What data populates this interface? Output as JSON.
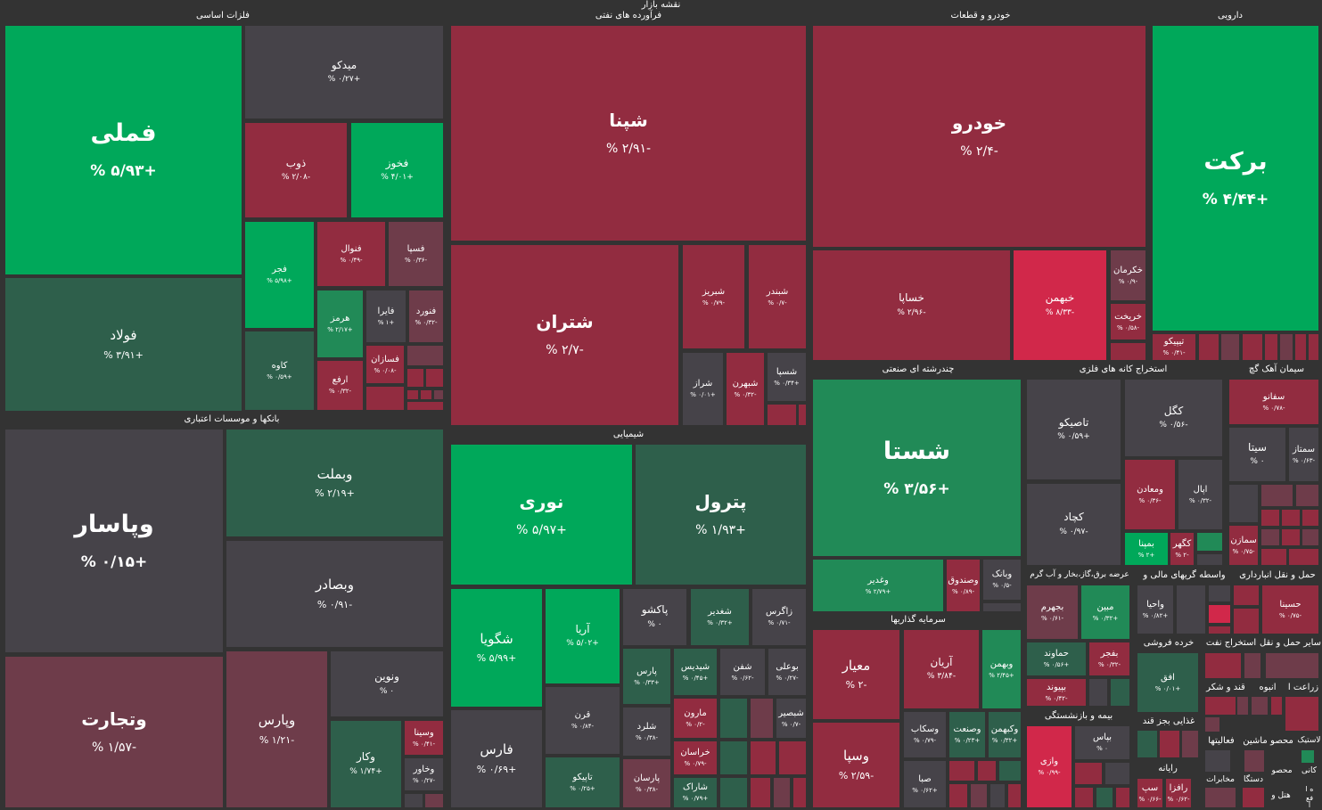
{
  "title": "نقشه بازار",
  "colors": {
    "strong_green": "#00a85a",
    "green": "#218a57",
    "dark_green": "#2e5f4b",
    "red": "#922c40",
    "bright_red": "#d1284a",
    "muted_red": "#6e3c4a",
    "neutral": "#464349",
    "background": "#333333"
  },
  "sectors": {
    "base_metals": "فلزات اساسی",
    "petroleum": "فرآورده های نفتی",
    "auto": "خودرو و قطعات",
    "pharma": "دارویی",
    "banks": "بانکها و موسسات اعتباری",
    "chemical": "شیمیایی",
    "multi": "چندرشته ای صنعتی",
    "mining": "استخراج کانه های فلزی",
    "cement": "سیمان آهک گچ",
    "utilities": "عرضه برق،گاز،بخار و آب گرم",
    "financial_intermediation": "واسطه گریهای مالی و",
    "transport": "حمل و نقل انبارداری",
    "investments": "سرمایه گذاریها",
    "retail": "خرده فروشی",
    "oil_extraction": "استخراج نفت",
    "other_transport": "سایر حمل و نقل",
    "insurance": "بیمه و بازنشستگی",
    "food": "غذایی بجز قند",
    "sugar": "قند و شکر",
    "masonry": "انبوه",
    "agriculture": "زراعت ا",
    "computer": "رایانه",
    "machinery": "ماشین",
    "activities": "فعالیتها",
    "plastic": "لاستیک",
    "products": "محصو",
    "telecom": "مخابرات",
    "devices": "دستگا",
    "hotel": "هتل و",
    "mineral": "کانی",
    "product2": "محصو",
    "misc_a": "ه ا",
    "misc_b": "فع",
    "misc_c": "ا"
  },
  "tiles": [
    {
      "name": "فملی",
      "pct": "+۵/۹۳ %"
    },
    {
      "name": "میدکو",
      "pct": "+۰/۲۷ %"
    },
    {
      "name": "ذوب",
      "pct": "-۲/۰۸ %"
    },
    {
      "name": "فخوز",
      "pct": "+۴/۰۱ %"
    },
    {
      "name": "فجر",
      "pct": "+۵/۹۸ %"
    },
    {
      "name": "فنوال",
      "pct": "-۰/۴۹ %"
    },
    {
      "name": "فسپا",
      "pct": "-۰/۳۶ %"
    },
    {
      "name": "هرمز",
      "pct": "+۲/۱۷ %"
    },
    {
      "name": "فایرا",
      "pct": "+۱ %"
    },
    {
      "name": "فنورد",
      "pct": "-۰/۳۲ %"
    },
    {
      "name": "فولاد",
      "pct": "+۳/۹۱ %"
    },
    {
      "name": "کاوه",
      "pct": "+۰/۵۹ %"
    },
    {
      "name": "ارفع",
      "pct": "-۰/۳۲ %"
    },
    {
      "name": "فسازان",
      "pct": "-۰/۰۸ %"
    },
    {
      "name": "شپنا",
      "pct": "-۲/۹۱ %"
    },
    {
      "name": "شتران",
      "pct": "-۲/۷ %"
    },
    {
      "name": "شبریز",
      "pct": "-۰/۷۹ %"
    },
    {
      "name": "شبندر",
      "pct": "-۰/۷ %"
    },
    {
      "name": "شراز",
      "pct": "+۰/۰۱ %"
    },
    {
      "name": "شبهرن",
      "pct": "-۰/۳۲ %"
    },
    {
      "name": "شسپا",
      "pct": "+۰/۳۴ %"
    },
    {
      "name": "خودرو",
      "pct": "-۲/۴ %"
    },
    {
      "name": "خساپا",
      "pct": "-۲/۹۶ %"
    },
    {
      "name": "خبهمن",
      "pct": "-۸/۳۳ %"
    },
    {
      "name": "خکرمان",
      "pct": "-۰/۹ %"
    },
    {
      "name": "خریخت",
      "pct": "-۰/۵۸ %"
    },
    {
      "name": "برکت",
      "pct": "+۴/۴۴ %"
    },
    {
      "name": "تیپیکو",
      "pct": "-۰/۴۱ %"
    },
    {
      "name": "وپاسار",
      "pct": "+۰/۱۵ %"
    },
    {
      "name": "وبملت",
      "pct": "+۲/۱۹ %"
    },
    {
      "name": "وبصادر",
      "pct": "-۰/۹۱ %"
    },
    {
      "name": "ونوین",
      "pct": "۰ %"
    },
    {
      "name": "وتجارت",
      "pct": "-۱/۵۷ %"
    },
    {
      "name": "وپارس",
      "pct": "-۱/۲۱ %"
    },
    {
      "name": "وکار",
      "pct": "+۱/۷۴ %"
    },
    {
      "name": "وسینا",
      "pct": "-۰/۴۱ %"
    },
    {
      "name": "وخاور",
      "pct": "-۰/۲۷ %"
    },
    {
      "name": "نوری",
      "pct": "+۵/۹۷ %"
    },
    {
      "name": "پترول",
      "pct": "+۱/۹۳ %"
    },
    {
      "name": "شگویا",
      "pct": "+۵/۹۹ %"
    },
    {
      "name": "آریا",
      "pct": "+۵/۰۲ %"
    },
    {
      "name": "پاکشو",
      "pct": "۰ %"
    },
    {
      "name": "شغدیر",
      "pct": "+۰/۳۲ %"
    },
    {
      "name": "زاگرس",
      "pct": "-۰/۷۱ %"
    },
    {
      "name": "قرن",
      "pct": "-۰/۸۴ %"
    },
    {
      "name": "پارس",
      "pct": "+۰/۳۳ %"
    },
    {
      "name": "شیدیس",
      "pct": "+۰/۴۵ %"
    },
    {
      "name": "شفن",
      "pct": "-۰/۶۲ %"
    },
    {
      "name": "بوعلی",
      "pct": "-۰/۲۷ %"
    },
    {
      "name": "فارس",
      "pct": "+۰/۶۹ %"
    },
    {
      "name": "شلرد",
      "pct": "-۰/۳۸ %"
    },
    {
      "name": "مارون",
      "pct": "-۰/۲ %"
    },
    {
      "name": "شبصیر",
      "pct": "-۰/۷ %"
    },
    {
      "name": "خراسان",
      "pct": "-۰/۷۹ %"
    },
    {
      "name": "تاپیکو",
      "pct": "+۰/۲۵ %"
    },
    {
      "name": "پارسان",
      "pct": "-۰/۳۸ %"
    },
    {
      "name": "شاراک",
      "pct": "+۰/۷۹ %"
    },
    {
      "name": "شستا",
      "pct": "+۳/۵۶ %"
    },
    {
      "name": "وغدیر",
      "pct": "+۲/۷۹ %"
    },
    {
      "name": "وصندوق",
      "pct": "-۰/۸۹ %"
    },
    {
      "name": "وبانک",
      "pct": "-۰/۵ %"
    },
    {
      "name": "تاصیکو",
      "pct": "+۰/۵۹ %"
    },
    {
      "name": "کگل",
      "pct": "-۰/۵۶ %"
    },
    {
      "name": "کچاد",
      "pct": "-۰/۹۷ %"
    },
    {
      "name": "ومعادن",
      "pct": "-۰/۳۶ %"
    },
    {
      "name": "اپال",
      "pct": "-۰/۳۲ %"
    },
    {
      "name": "بمپنا",
      "pct": "+۲ %"
    },
    {
      "name": "کگهر",
      "pct": "-۲ %"
    },
    {
      "name": "سفانو",
      "pct": "-۰/۷۸ %"
    },
    {
      "name": "سیتا",
      "pct": "۰ %"
    },
    {
      "name": "سمتاز",
      "pct": "-۰/۶۳ %"
    },
    {
      "name": "سمازن",
      "pct": "-۰/۷۵ %"
    },
    {
      "name": "بجهرم",
      "pct": "-۰/۶۱ %"
    },
    {
      "name": "مبین",
      "pct": "+۰/۳۲ %"
    },
    {
      "name": "واحیا",
      "pct": "+۰/۸۲ %"
    },
    {
      "name": "حسینا",
      "pct": "-۰/۷۵ %"
    },
    {
      "name": "معیار",
      "pct": "-۲ %"
    },
    {
      "name": "وسپا",
      "pct": "-۲/۵۹ %"
    },
    {
      "name": "آریان",
      "pct": "-۳/۸۴ %"
    },
    {
      "name": "وبهمن",
      "pct": "+۲/۴۵ %"
    },
    {
      "name": "وسکاب",
      "pct": "-۰/۷۹ %"
    },
    {
      "name": "وصنعت",
      "pct": "+۰/۲۳ %"
    },
    {
      "name": "وکبهمن",
      "pct": "+۰/۳۲ %"
    },
    {
      "name": "صبا",
      "pct": "+۰/۶۲ %"
    },
    {
      "name": "حماوند",
      "pct": "+۰/۵۶ %"
    },
    {
      "name": "بفجر",
      "pct": "-۰/۳۲ %"
    },
    {
      "name": "بپیوند",
      "pct": "-۰/۴۲ %"
    },
    {
      "name": "وازی",
      "pct": "-۰/۹۹ %"
    },
    {
      "name": "بپاس",
      "pct": "۰ %"
    },
    {
      "name": "افق",
      "pct": "+۰/۰۱ %"
    },
    {
      "name": "سپ",
      "pct": "-۰/۶۶ %"
    },
    {
      "name": "رافزا",
      "pct": "-۰/۶۲ %"
    }
  ]
}
